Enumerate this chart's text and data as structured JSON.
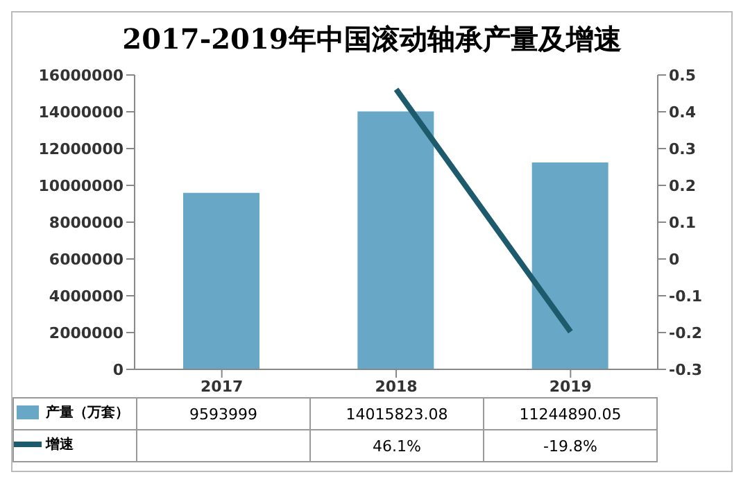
{
  "chart_data": {
    "type": "bar",
    "title": "2017-2019年中国滚动轴承产量及增速",
    "categories": [
      "2017",
      "2018",
      "2019"
    ],
    "series": [
      {
        "name": "产量（万套）",
        "color": "#68a8c6",
        "values": [
          9593999,
          14015823.08,
          11244890.05
        ],
        "value_labels": [
          "9593999",
          "14015823.08",
          "11244890.05"
        ]
      },
      {
        "name": "增速",
        "type": "line",
        "axis": "y2",
        "color": "#1d5a6c",
        "values": [
          null,
          0.461,
          -0.198
        ],
        "value_labels": [
          null,
          "46.1%",
          "-19.8%"
        ]
      }
    ],
    "ylim": [
      0,
      16000000
    ],
    "yticks": [
      0,
      2000000,
      4000000,
      6000000,
      8000000,
      10000000,
      12000000,
      14000000,
      16000000
    ],
    "y2lim": [
      -0.3,
      0.5
    ],
    "y2ticks": [
      -0.3,
      -0.2,
      -0.1,
      0,
      0.1,
      0.2,
      0.3,
      0.4,
      0.5
    ],
    "legend": "bottom",
    "marker": "none",
    "grid": false
  }
}
